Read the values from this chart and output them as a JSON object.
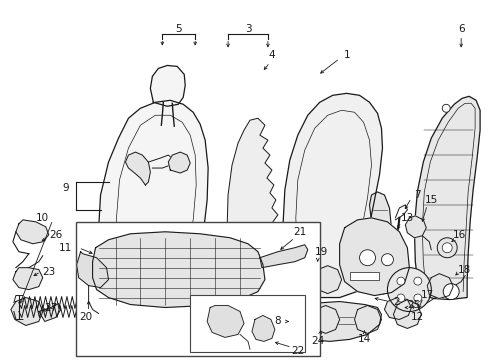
{
  "background_color": "#ffffff",
  "fig_width": 4.9,
  "fig_height": 3.6,
  "dpi": 100,
  "line_color": "#1a1a1a",
  "fill_color": "#f5f5f5",
  "fill_dark": "#e0e0e0"
}
